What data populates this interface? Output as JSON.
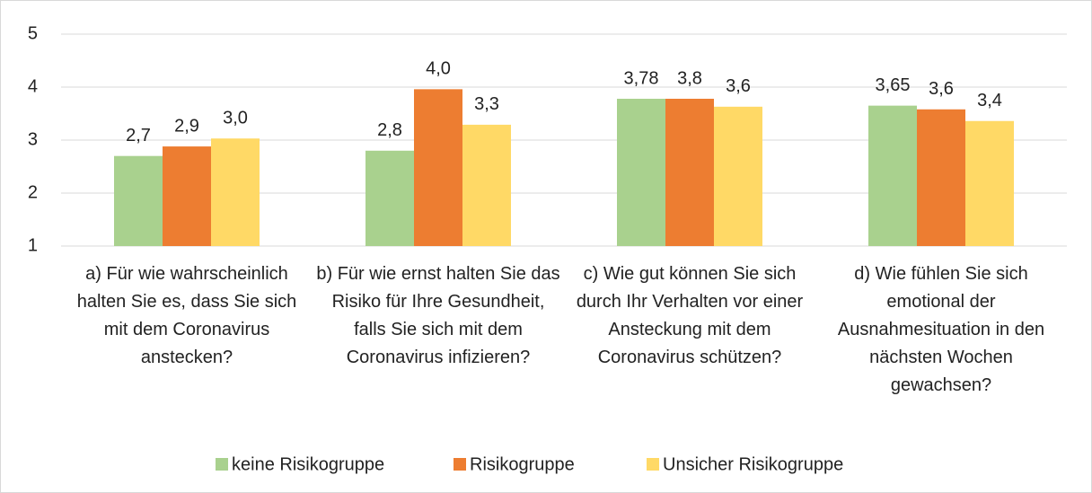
{
  "chart_data": {
    "type": "bar",
    "categories": [
      "a) Für wie wahrscheinlich halten Sie es, dass Sie sich mit dem Coronavirus anstecken?",
      "b) Für wie ernst halten Sie das Risiko für Ihre Gesundheit, falls Sie sich mit dem Coronavirus infizieren?",
      "c) Wie gut können Sie sich durch Ihr Verhalten vor einer Ansteckung mit dem Coronavirus schützen?",
      "d) Wie fühlen Sie sich emotional der Ausnahmesituation in den nächsten Wochen gewachsen?"
    ],
    "series": [
      {
        "name": "keine Risikogruppe",
        "color": "#a9d18e",
        "values": [
          2.7,
          2.8,
          3.78,
          3.65
        ],
        "value_labels": [
          "2,7",
          "2,8",
          "3,78",
          "3,65"
        ]
      },
      {
        "name": "Risikogruppe",
        "color": "#ed7d31",
        "values": [
          2.88,
          3.96,
          3.78,
          3.58
        ],
        "value_labels": [
          "2,9",
          "4,0",
          "3,8",
          "3,6"
        ]
      },
      {
        "name": "Unsicher Risikogruppe",
        "color": "#ffd966",
        "values": [
          3.03,
          3.29,
          3.63,
          3.36
        ],
        "value_labels": [
          "3,0",
          "3,3",
          "3,6",
          "3,4"
        ]
      }
    ],
    "ylim": [
      1,
      5
    ],
    "yticks": [
      1,
      2,
      3,
      4,
      5
    ],
    "grid": true,
    "legend": "bottom"
  }
}
